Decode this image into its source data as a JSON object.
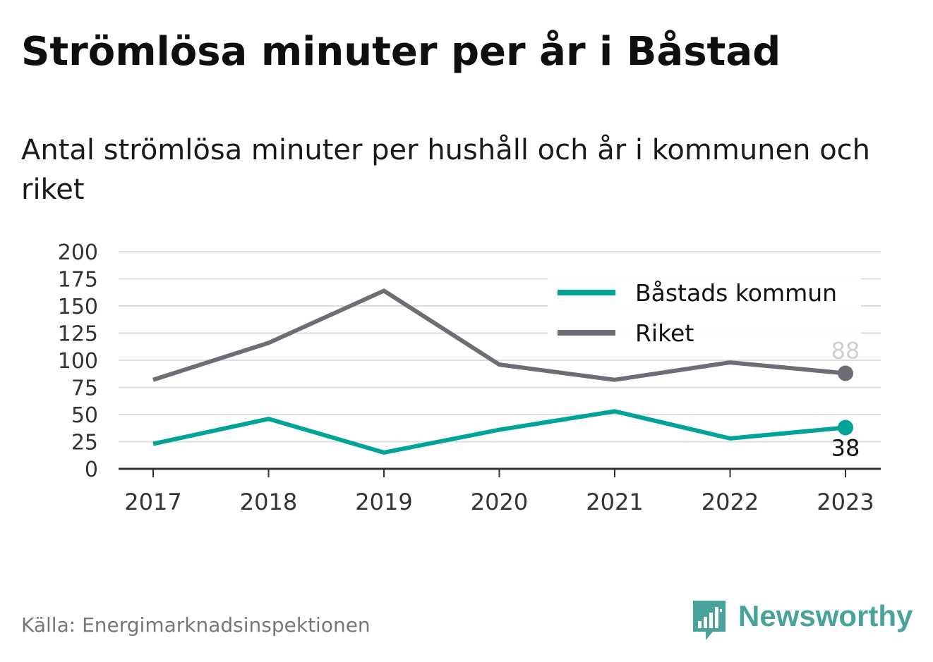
{
  "title": "Strömlösa minuter per år i Båstad",
  "subtitle": "Antal strömlösa minuter per hushåll och år i kommunen och riket",
  "source": "Källa: Energimarknadsinspektionen",
  "brand": {
    "name": "Newsworthy",
    "color": "#4aa39a",
    "icon": "bar-chart-speech-bubble-icon"
  },
  "chart_data": {
    "type": "line",
    "x": [
      "2017",
      "2018",
      "2019",
      "2020",
      "2021",
      "2022",
      "2023"
    ],
    "ylim": [
      0,
      200
    ],
    "yticks": [
      "0",
      "25",
      "50",
      "75",
      "100",
      "125",
      "150",
      "175",
      "200"
    ],
    "grid": true,
    "legend_position": "top-right",
    "series": [
      {
        "name": "Båstads kommun",
        "color": "#00a398",
        "values": [
          23,
          46,
          15,
          36,
          53,
          28,
          38
        ],
        "end_label": "38",
        "end_label_position": "below"
      },
      {
        "name": "Riket",
        "color": "#6e6d76",
        "values": [
          82,
          116,
          164,
          96,
          82,
          98,
          88
        ],
        "end_label": "88",
        "end_label_position": "above"
      }
    ]
  }
}
